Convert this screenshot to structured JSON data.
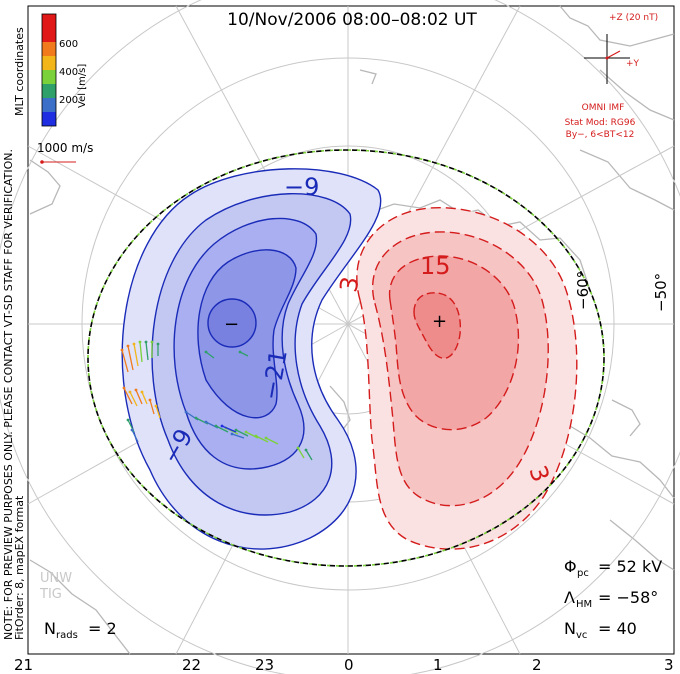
{
  "title": "10/Nov/2006 08:00–08:02 UT",
  "colorbar": {
    "label": "Vel [m/s]",
    "ticks": [
      "600",
      "400",
      "200"
    ],
    "colors": [
      "#e01818",
      "#f07a1c",
      "#f2b51a",
      "#7bd13a",
      "#2fa06a",
      "#3b6fc8",
      "#1e2ee0"
    ]
  },
  "coord_label": "MLT coordinates",
  "side_note": "NOTE: FOR PREVIEW PURPOSES ONLY. PLEASE CONTACT VT-SD STAFF FOR VERIFICATION.",
  "fit_note": "FitOrder: 8, mapEX format",
  "scale_vector": "1000 m/s",
  "imf": {
    "z_label": "+Z (20 nT)",
    "y_label": "+Y",
    "omni": "OMNI IMF",
    "stat_mod": "Stat Mod: RG96",
    "by_bt": "By−, 6<BT<12"
  },
  "contours": {
    "neg_labels": [
      "−9",
      "−21",
      "−9"
    ],
    "pos_labels": [
      "15",
      "3",
      "3"
    ],
    "min_marker": "−",
    "max_marker": "+"
  },
  "lat_labels": [
    "−60°",
    "−50°"
  ],
  "mlt_labels": [
    "21",
    "22",
    "23",
    "0",
    "1",
    "2",
    "3"
  ],
  "phi_pc": {
    "sym": "Φ",
    "sub": "pc",
    "value": "= 52 kV"
  },
  "lambda_hm": {
    "sym": "Λ",
    "sub": "HM",
    "value": "= −58°"
  },
  "n_vc": {
    "sym": "N",
    "sub": "vc",
    "value": "= 40"
  },
  "n_rads": {
    "sym": "N",
    "sub": "rads",
    "value": "= 2"
  },
  "watermark": [
    "UNW",
    "TIG"
  ],
  "colors": {
    "neg_fill": "#8e96e8",
    "pos_fill": "#f08a8a",
    "neg_line": "#1a2bb8",
    "pos_line": "#d41c1c",
    "grid": "#c8c8c8",
    "land": "#b8b8b8",
    "imf": "#d41c1c"
  }
}
